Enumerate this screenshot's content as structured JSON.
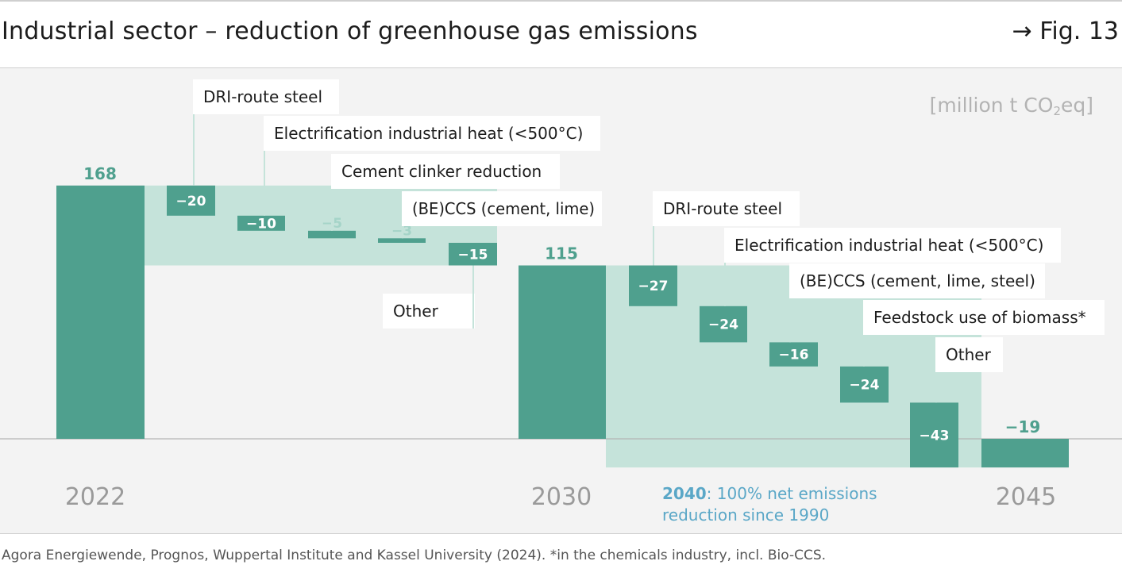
{
  "header": {
    "title": "Industrial sector – reduction of greenhouse gas emissions",
    "fig_ref": "→ Fig. 13"
  },
  "unit": {
    "prefix": "[million t CO",
    "sub": "2",
    "suffix": "eq]"
  },
  "footer": {
    "source": "Agora Energiewende, Prognos, Wuppertal Institute and Kassel University (2024). *in the chemicals industry, incl. Bio-CCS."
  },
  "note": {
    "bold": "2040",
    "line1": ": 100% net emissions",
    "line2": "reduction since 1990"
  },
  "colors": {
    "total": "#4fa08e",
    "step": "#4fa08e",
    "step_light": "#a5d4c8",
    "shade": "#c5e3da",
    "label_text": "#ffffff",
    "note_blue": "#5aa7c7",
    "year": "#9a9a9a",
    "connector": "#c5e3da",
    "baseline": "#b5b5b5"
  },
  "chart_data": {
    "type": "waterfall",
    "unit": "million t CO2eq",
    "totals": [
      {
        "year": "2022",
        "value": 168,
        "label": "168"
      },
      {
        "year": "2030",
        "value": 115,
        "label": "115"
      },
      {
        "year": "2045",
        "value": -19,
        "label": "−19"
      }
    ],
    "steps": [
      {
        "label": "DRI-route steel",
        "value": -20,
        "value_label": "−20",
        "period": "2022-2030"
      },
      {
        "label": "Electrification industrial heat (<500°C)",
        "value": -10,
        "value_label": "−10",
        "period": "2022-2030"
      },
      {
        "label": "Cement clinker reduction",
        "value": -5,
        "value_label": "−5",
        "period": "2022-2030"
      },
      {
        "label": "(BE)CCS (cement, lime)",
        "value": -3,
        "value_label": "−3",
        "period": "2022-2030"
      },
      {
        "label": "Other",
        "value": -15,
        "value_label": "−15",
        "period": "2022-2030"
      },
      {
        "label": "DRI-route steel",
        "value": -27,
        "value_label": "−27",
        "period": "2030-2045"
      },
      {
        "label": "Electrification industrial heat (<500°C)",
        "value": -24,
        "value_label": "−24",
        "period": "2030-2045"
      },
      {
        "label": "(BE)CCS (cement, lime, steel)",
        "value": -16,
        "value_label": "−16",
        "period": "2030-2045"
      },
      {
        "label": "Feedstock use of biomass*",
        "value": -24,
        "value_label": "−24",
        "period": "2030-2045"
      },
      {
        "label": "Other",
        "value": -43,
        "value_label": "−43",
        "period": "2030-2045"
      }
    ]
  }
}
